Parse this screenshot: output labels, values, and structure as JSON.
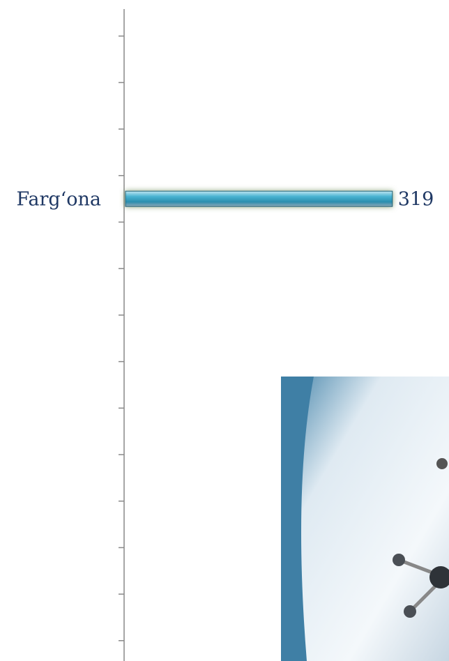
{
  "chart_data": {
    "type": "bar",
    "orientation": "horizontal",
    "categories": [
      null,
      null,
      null,
      null,
      "Farg‘ona",
      null,
      null,
      null,
      null,
      null,
      null,
      null,
      null,
      null,
      null
    ],
    "values": [
      null,
      null,
      null,
      null,
      319,
      null,
      null,
      null,
      null,
      null,
      null,
      null,
      null,
      null,
      null
    ],
    "color": "#3aa6c4"
  }
}
